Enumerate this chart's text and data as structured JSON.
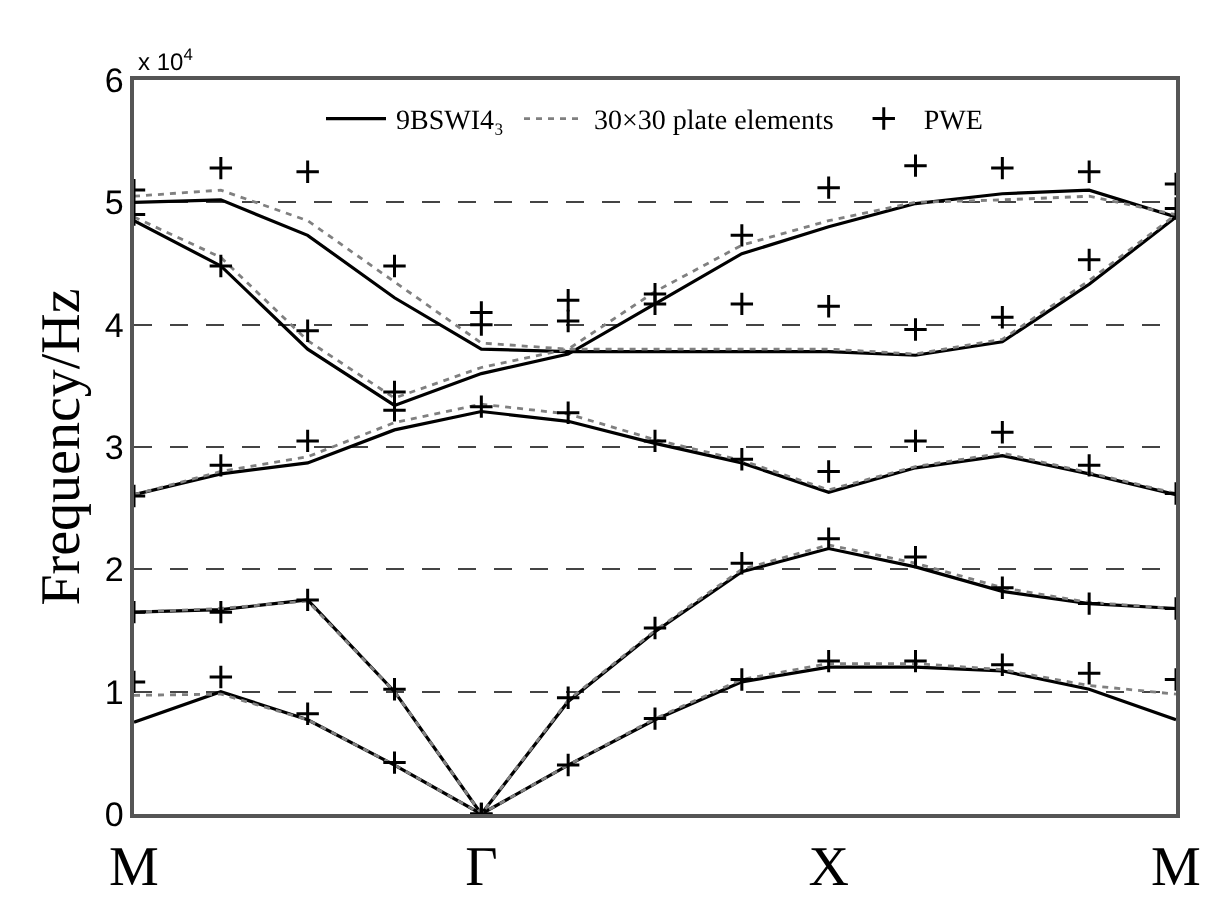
{
  "chart_data": {
    "type": "line",
    "ylabel": "Frequency/Hz",
    "annotations": [
      "x 10$^{4}$"
    ],
    "categories": [
      "M",
      null,
      null,
      null,
      "Γ",
      null,
      null,
      null,
      "X",
      null,
      null,
      null,
      "M"
    ],
    "ylim": [
      0,
      6
    ],
    "yticks": [
      0,
      1,
      2,
      3,
      4,
      5,
      6
    ],
    "grid": "y",
    "legend": "top",
    "series": [
      {
        "name": "9BSWI4₃",
        "line_style": "solid",
        "marker": "none",
        "color": "#000000",
        "values": [
          0.75,
          1.0,
          0.77,
          0.4,
          0,
          0.4,
          0.77,
          1.08,
          1.2,
          1.2,
          1.17,
          1.02,
          0.77
        ]
      },
      {
        "line_style": "solid",
        "marker": "none",
        "color": "#000000",
        "values": [
          1.65,
          1.67,
          1.75,
          1.0,
          0,
          0.92,
          1.49,
          1.98,
          2.17,
          2.02,
          1.82,
          1.72,
          1.68
        ]
      },
      {
        "line_style": "solid",
        "marker": "none",
        "color": "#000000",
        "values": [
          2.61,
          2.78,
          2.87,
          3.14,
          3.29,
          3.21,
          3.03,
          2.87,
          2.63,
          2.83,
          2.93,
          2.78,
          2.61
        ]
      },
      {
        "line_style": "solid",
        "marker": "none",
        "color": "#000000",
        "values": [
          4.85,
          4.48,
          3.8,
          3.34,
          3.6,
          3.76,
          4.17,
          4.58,
          4.8,
          4.99,
          5.07,
          5.1,
          4.88
        ]
      },
      {
        "line_style": "solid",
        "marker": "none",
        "color": "#000000",
        "values": [
          5.0,
          5.02,
          4.73,
          4.22,
          3.8,
          3.78,
          3.78,
          3.78,
          3.78,
          3.75,
          3.86,
          4.33,
          4.88
        ]
      },
      {
        "name": "30×30 plate elements",
        "line_style": "dotted",
        "marker": "none",
        "color": "#808080",
        "values": [
          0.97,
          0.98,
          0.77,
          0.4,
          0,
          0.4,
          0.78,
          1.1,
          1.23,
          1.23,
          1.18,
          1.05,
          0.98
        ]
      },
      {
        "line_style": "dotted",
        "marker": "none",
        "color": "#808080",
        "values": [
          1.65,
          1.68,
          1.74,
          1.0,
          0,
          0.93,
          1.5,
          2.0,
          2.2,
          2.05,
          1.85,
          1.73,
          1.68
        ]
      },
      {
        "line_style": "dotted",
        "marker": "none",
        "color": "#808080",
        "values": [
          2.61,
          2.8,
          2.92,
          3.2,
          3.35,
          3.27,
          3.06,
          2.89,
          2.65,
          2.84,
          2.95,
          2.79,
          2.62
        ]
      },
      {
        "line_style": "dotted",
        "marker": "none",
        "color": "#808080",
        "values": [
          4.88,
          4.55,
          3.87,
          3.4,
          3.65,
          3.8,
          4.27,
          4.65,
          4.85,
          5.0,
          5.02,
          5.05,
          4.9
        ]
      },
      {
        "line_style": "dotted",
        "marker": "none",
        "color": "#808080",
        "values": [
          5.05,
          5.1,
          4.85,
          4.35,
          3.85,
          3.8,
          3.8,
          3.8,
          3.8,
          3.76,
          3.88,
          4.36,
          4.9
        ]
      },
      {
        "name": "PWE",
        "type": "scatter",
        "marker": "cross",
        "color": "#000000",
        "values": [
          1.08,
          1.12,
          0.82,
          0.42,
          0,
          0.4,
          0.78,
          1.1,
          1.25,
          1.25,
          1.22,
          1.15,
          1.1
        ]
      },
      {
        "type": "scatter",
        "marker": "cross",
        "color": "#000000",
        "values": [
          1.65,
          1.65,
          1.75,
          1.02,
          0,
          0.95,
          1.52,
          2.05,
          2.25,
          2.1,
          1.85,
          1.72,
          1.68
        ]
      },
      {
        "type": "scatter",
        "marker": "cross",
        "color": "#000000",
        "values": [
          2.6,
          2.85,
          3.05,
          3.3,
          3.33,
          3.28,
          3.05,
          2.9,
          2.8,
          3.05,
          3.12,
          2.85,
          2.62
        ]
      },
      {
        "type": "scatter",
        "marker": "cross",
        "color": "#000000",
        "values": [
          4.9,
          4.48,
          3.95,
          3.45,
          4.0,
          4.03,
          4.25,
          4.73,
          5.12,
          5.3,
          5.28,
          5.25,
          5.15
        ]
      },
      {
        "type": "scatter",
        "marker": "cross",
        "color": "#000000",
        "values": [
          5.1,
          5.28,
          5.25,
          4.48,
          4.1,
          4.2,
          4.17,
          4.17,
          4.15,
          3.96,
          4.06,
          4.53,
          4.95
        ]
      }
    ]
  }
}
